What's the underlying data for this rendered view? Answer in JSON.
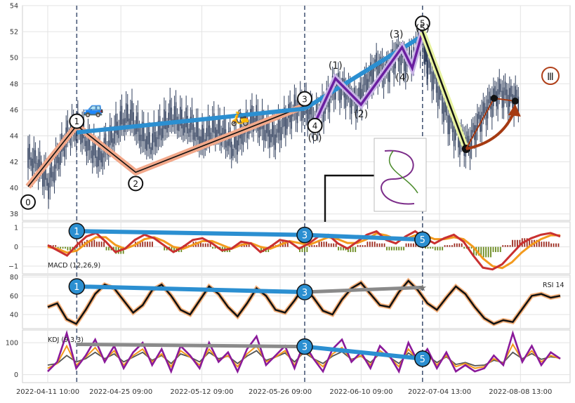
{
  "chart_data": [
    {
      "type": "line",
      "panel": "price",
      "title": "",
      "ylim": [
        37.5,
        54
      ],
      "yticks": [
        38,
        40,
        42,
        44,
        46,
        48,
        50,
        52,
        54
      ],
      "grid": true,
      "x_tick_labels": [
        "2022-04-11 10:00",
        "2022-04-25 09:00",
        "2022-05-12 09:00",
        "2022-05-26 09:00",
        "2022-06-10 09:00",
        "2022-07-04 13:00",
        "2022-08-08 13:00"
      ],
      "wave_points": [
        {
          "label": "0",
          "x": 0.0,
          "y": 40.1
        },
        {
          "label": "1",
          "x": 0.095,
          "y": 44.8
        },
        {
          "label": "2",
          "x": 0.21,
          "y": 41.2
        },
        {
          "label": "3",
          "x": 0.54,
          "y": 46.3
        },
        {
          "label": "4",
          "x": 0.56,
          "y": 45.0
        },
        {
          "label": "5",
          "x": 0.77,
          "y": 52.0
        }
      ],
      "subwave_labels": [
        "(0)",
        "(1)",
        "(2)",
        "(3)",
        "(4)",
        "(5)"
      ],
      "subwave_points": [
        {
          "x": 0.56,
          "y": 45.0
        },
        {
          "x": 0.6,
          "y": 48.4
        },
        {
          "x": 0.65,
          "y": 46.4
        },
        {
          "x": 0.73,
          "y": 50.8
        },
        {
          "x": 0.75,
          "y": 49.2
        },
        {
          "x": 0.77,
          "y": 52.0
        }
      ],
      "correction_end": {
        "x": 0.855,
        "y": 43.0
      },
      "roman_label": "Ⅲ",
      "price_path": [
        {
          "x": 0.0,
          "y": 42.3
        },
        {
          "x": 0.02,
          "y": 41.8
        },
        {
          "x": 0.04,
          "y": 40.3
        },
        {
          "x": 0.06,
          "y": 42.4
        },
        {
          "x": 0.08,
          "y": 44.3
        },
        {
          "x": 0.1,
          "y": 44.6
        },
        {
          "x": 0.12,
          "y": 43.1
        },
        {
          "x": 0.14,
          "y": 42.3
        },
        {
          "x": 0.16,
          "y": 43.6
        },
        {
          "x": 0.18,
          "y": 45.0
        },
        {
          "x": 0.2,
          "y": 45.6
        },
        {
          "x": 0.22,
          "y": 44.1
        },
        {
          "x": 0.24,
          "y": 43.4
        },
        {
          "x": 0.26,
          "y": 44.5
        },
        {
          "x": 0.28,
          "y": 45.6
        },
        {
          "x": 0.3,
          "y": 45.0
        },
        {
          "x": 0.32,
          "y": 44.7
        },
        {
          "x": 0.34,
          "y": 43.6
        },
        {
          "x": 0.36,
          "y": 44.6
        },
        {
          "x": 0.38,
          "y": 44.2
        },
        {
          "x": 0.4,
          "y": 43.1
        },
        {
          "x": 0.42,
          "y": 44.3
        },
        {
          "x": 0.44,
          "y": 45.4
        },
        {
          "x": 0.46,
          "y": 44.6
        },
        {
          "x": 0.48,
          "y": 43.9
        },
        {
          "x": 0.5,
          "y": 45.0
        },
        {
          "x": 0.52,
          "y": 46.0
        },
        {
          "x": 0.54,
          "y": 46.3
        },
        {
          "x": 0.56,
          "y": 45.2
        },
        {
          "x": 0.58,
          "y": 46.4
        },
        {
          "x": 0.6,
          "y": 47.9
        },
        {
          "x": 0.62,
          "y": 47.4
        },
        {
          "x": 0.64,
          "y": 46.5
        },
        {
          "x": 0.66,
          "y": 48.0
        },
        {
          "x": 0.68,
          "y": 49.4
        },
        {
          "x": 0.7,
          "y": 48.9
        },
        {
          "x": 0.72,
          "y": 50.3
        },
        {
          "x": 0.74,
          "y": 49.6
        },
        {
          "x": 0.77,
          "y": 51.7
        },
        {
          "x": 0.78,
          "y": 49.5
        },
        {
          "x": 0.8,
          "y": 47.6
        },
        {
          "x": 0.82,
          "y": 45.3
        },
        {
          "x": 0.84,
          "y": 43.9
        },
        {
          "x": 0.86,
          "y": 43.3
        },
        {
          "x": 0.88,
          "y": 45.1
        },
        {
          "x": 0.9,
          "y": 46.4
        },
        {
          "x": 0.92,
          "y": 47.4
        },
        {
          "x": 0.94,
          "y": 46.9
        },
        {
          "x": 0.96,
          "y": 46.8
        }
      ],
      "colors": {
        "candle": "#2f3e5c",
        "trend": "#2b8fd1",
        "channel": "#f2a88a",
        "subwave": "#6a1fa0",
        "arrow": "#a53a12"
      }
    },
    {
      "type": "line",
      "panel": "macd",
      "label": "MACD (12,26,9)",
      "ylim": [
        -1.4,
        1.3
      ],
      "yticks": [
        -1,
        0,
        1
      ],
      "points": [
        {
          "label": "1",
          "x": 0.095,
          "y": 0.82
        },
        {
          "label": "3",
          "x": 0.54,
          "y": 0.62
        },
        {
          "label": "5",
          "x": 0.77,
          "y": 0.38
        }
      ],
      "macd_path": [
        0.1,
        -0.2,
        -0.5,
        0.1,
        0.6,
        0.8,
        0.3,
        -0.3,
        -0.1,
        0.4,
        0.7,
        0.5,
        0.1,
        -0.3,
        0.0,
        0.4,
        0.5,
        0.2,
        -0.2,
        -0.1,
        0.3,
        0.2,
        -0.3,
        0.0,
        0.4,
        0.3,
        -0.1,
        0.2,
        0.6,
        0.7,
        0.2,
        -0.1,
        0.3,
        0.7,
        0.9,
        0.4,
        0.2,
        0.6,
        0.9,
        0.5,
        0.2,
        0.5,
        0.7,
        0.3,
        -0.5,
        -1.2,
        -1.3,
        -1.0,
        -0.4,
        0.2,
        0.5,
        0.7,
        0.8,
        0.6
      ],
      "signal_path": [
        0.0,
        -0.1,
        -0.3,
        -0.2,
        0.2,
        0.5,
        0.5,
        0.1,
        -0.1,
        0.1,
        0.4,
        0.5,
        0.3,
        0.0,
        -0.1,
        0.1,
        0.3,
        0.3,
        0.1,
        -0.1,
        0.1,
        0.2,
        0.0,
        -0.1,
        0.1,
        0.3,
        0.2,
        0.1,
        0.3,
        0.5,
        0.4,
        0.2,
        0.2,
        0.4,
        0.7,
        0.6,
        0.4,
        0.4,
        0.6,
        0.6,
        0.4,
        0.4,
        0.5,
        0.4,
        0.0,
        -0.6,
        -1.0,
        -1.1,
        -0.8,
        -0.3,
        0.1,
        0.4,
        0.6,
        0.6
      ]
    },
    {
      "type": "line",
      "panel": "rsi",
      "label": "RSI 14",
      "ylim": [
        25,
        82
      ],
      "yticks": [
        40,
        60,
        80
      ],
      "points": [
        {
          "label": "1",
          "x": 0.095,
          "y": 70
        },
        {
          "label": "3",
          "x": 0.54,
          "y": 64
        }
      ],
      "rsi_end": {
        "x": 0.77,
        "y": 69
      },
      "rsi_path": [
        48,
        52,
        35,
        30,
        45,
        62,
        72,
        68,
        55,
        42,
        50,
        66,
        72,
        60,
        45,
        40,
        55,
        70,
        62,
        48,
        38,
        52,
        68,
        60,
        45,
        42,
        55,
        70,
        58,
        44,
        40,
        56,
        68,
        74,
        62,
        50,
        48,
        64,
        76,
        66,
        52,
        45,
        58,
        70,
        62,
        48,
        36,
        30,
        34,
        32,
        46,
        60,
        62,
        58,
        60
      ]
    },
    {
      "type": "line",
      "panel": "kdj",
      "label": "KDJ (9,3,3)",
      "ylim": [
        -25,
        140
      ],
      "yticks": [
        0,
        100
      ],
      "points": [
        {
          "label": "3",
          "x": 0.54,
          "y": 88
        },
        {
          "label": "5",
          "x": 0.77,
          "y": 50
        }
      ],
      "kdj_start": {
        "x": 0.095,
        "y": 95
      },
      "j_path": [
        10,
        40,
        130,
        20,
        60,
        110,
        40,
        90,
        20,
        70,
        100,
        30,
        80,
        10,
        90,
        60,
        20,
        100,
        40,
        70,
        10,
        80,
        120,
        30,
        60,
        90,
        20,
        100,
        50,
        10,
        80,
        110,
        40,
        70,
        20,
        90,
        60,
        10,
        100,
        40,
        80,
        20,
        70,
        10,
        30,
        10,
        20,
        60,
        30,
        130,
        40,
        90,
        30,
        70,
        50
      ],
      "k_path": [
        20,
        35,
        90,
        30,
        55,
        85,
        45,
        75,
        30,
        60,
        80,
        40,
        65,
        25,
        75,
        55,
        30,
        80,
        45,
        60,
        25,
        65,
        90,
        40,
        55,
        75,
        30,
        80,
        50,
        25,
        65,
        85,
        45,
        60,
        30,
        75,
        55,
        25,
        80,
        45,
        65,
        30,
        60,
        25,
        35,
        20,
        25,
        50,
        35,
        95,
        45,
        75,
        40,
        60,
        50
      ],
      "d_path": [
        30,
        35,
        60,
        40,
        50,
        70,
        50,
        65,
        40,
        55,
        70,
        45,
        60,
        35,
        65,
        55,
        40,
        70,
        50,
        58,
        35,
        58,
        75,
        45,
        55,
        68,
        40,
        70,
        50,
        35,
        58,
        72,
        48,
        58,
        38,
        66,
        55,
        35,
        68,
        48,
        60,
        38,
        56,
        32,
        38,
        28,
        30,
        45,
        38,
        70,
        50,
        66,
        48,
        56,
        52
      ]
    }
  ],
  "legend_labels": [
    "MACD (12,26,9)",
    "RSI 14",
    "KDJ (9,3,3)"
  ]
}
